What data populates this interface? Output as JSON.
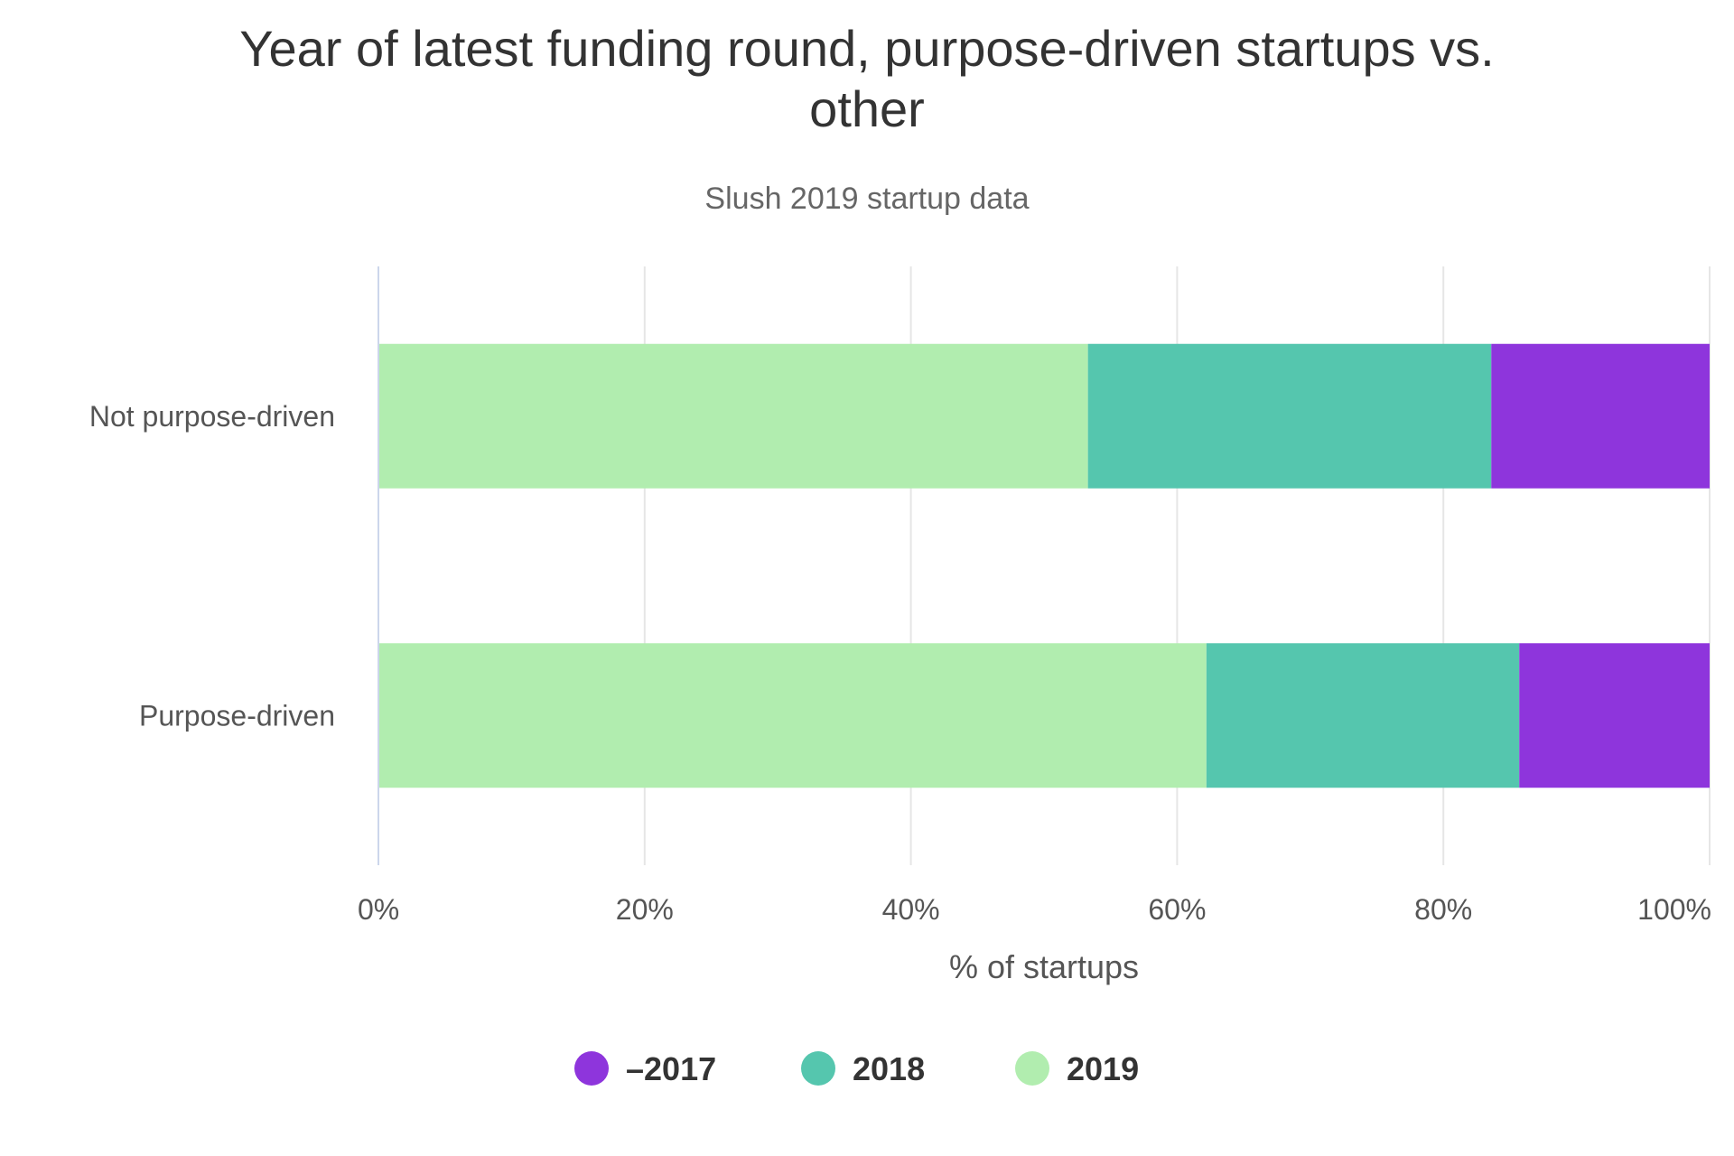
{
  "chart_data": {
    "type": "bar",
    "orientation": "horizontal",
    "stacking": "percent",
    "title": "Year of latest funding round, purpose-driven startups vs. other",
    "title_lines": [
      "Year of latest funding round, purpose-driven startups vs.",
      "other"
    ],
    "subtitle": "Slush 2019 startup data",
    "categories": [
      "Not purpose-driven",
      "Purpose-driven"
    ],
    "series": [
      {
        "name": "2019",
        "color": "#b1edaf",
        "values": [
          53.3,
          62.2
        ]
      },
      {
        "name": "2018",
        "color": "#55c6ae",
        "values": [
          30.3,
          23.5
        ]
      },
      {
        "name": "–2017",
        "color": "#8e35dc",
        "values": [
          16.4,
          14.3
        ]
      }
    ],
    "xlabel": "% of startups",
    "ylabel": "",
    "xlim": [
      0,
      100
    ],
    "ticks": [
      "0%",
      "20%",
      "40%",
      "60%",
      "80%",
      "100%"
    ],
    "grid": true,
    "legend": {
      "placement": "bottom-center",
      "items": [
        {
          "name": "–2017",
          "color": "#8e35dc"
        },
        {
          "name": "2018",
          "color": "#55c6ae"
        },
        {
          "name": "2019",
          "color": "#b1edaf"
        }
      ]
    }
  }
}
